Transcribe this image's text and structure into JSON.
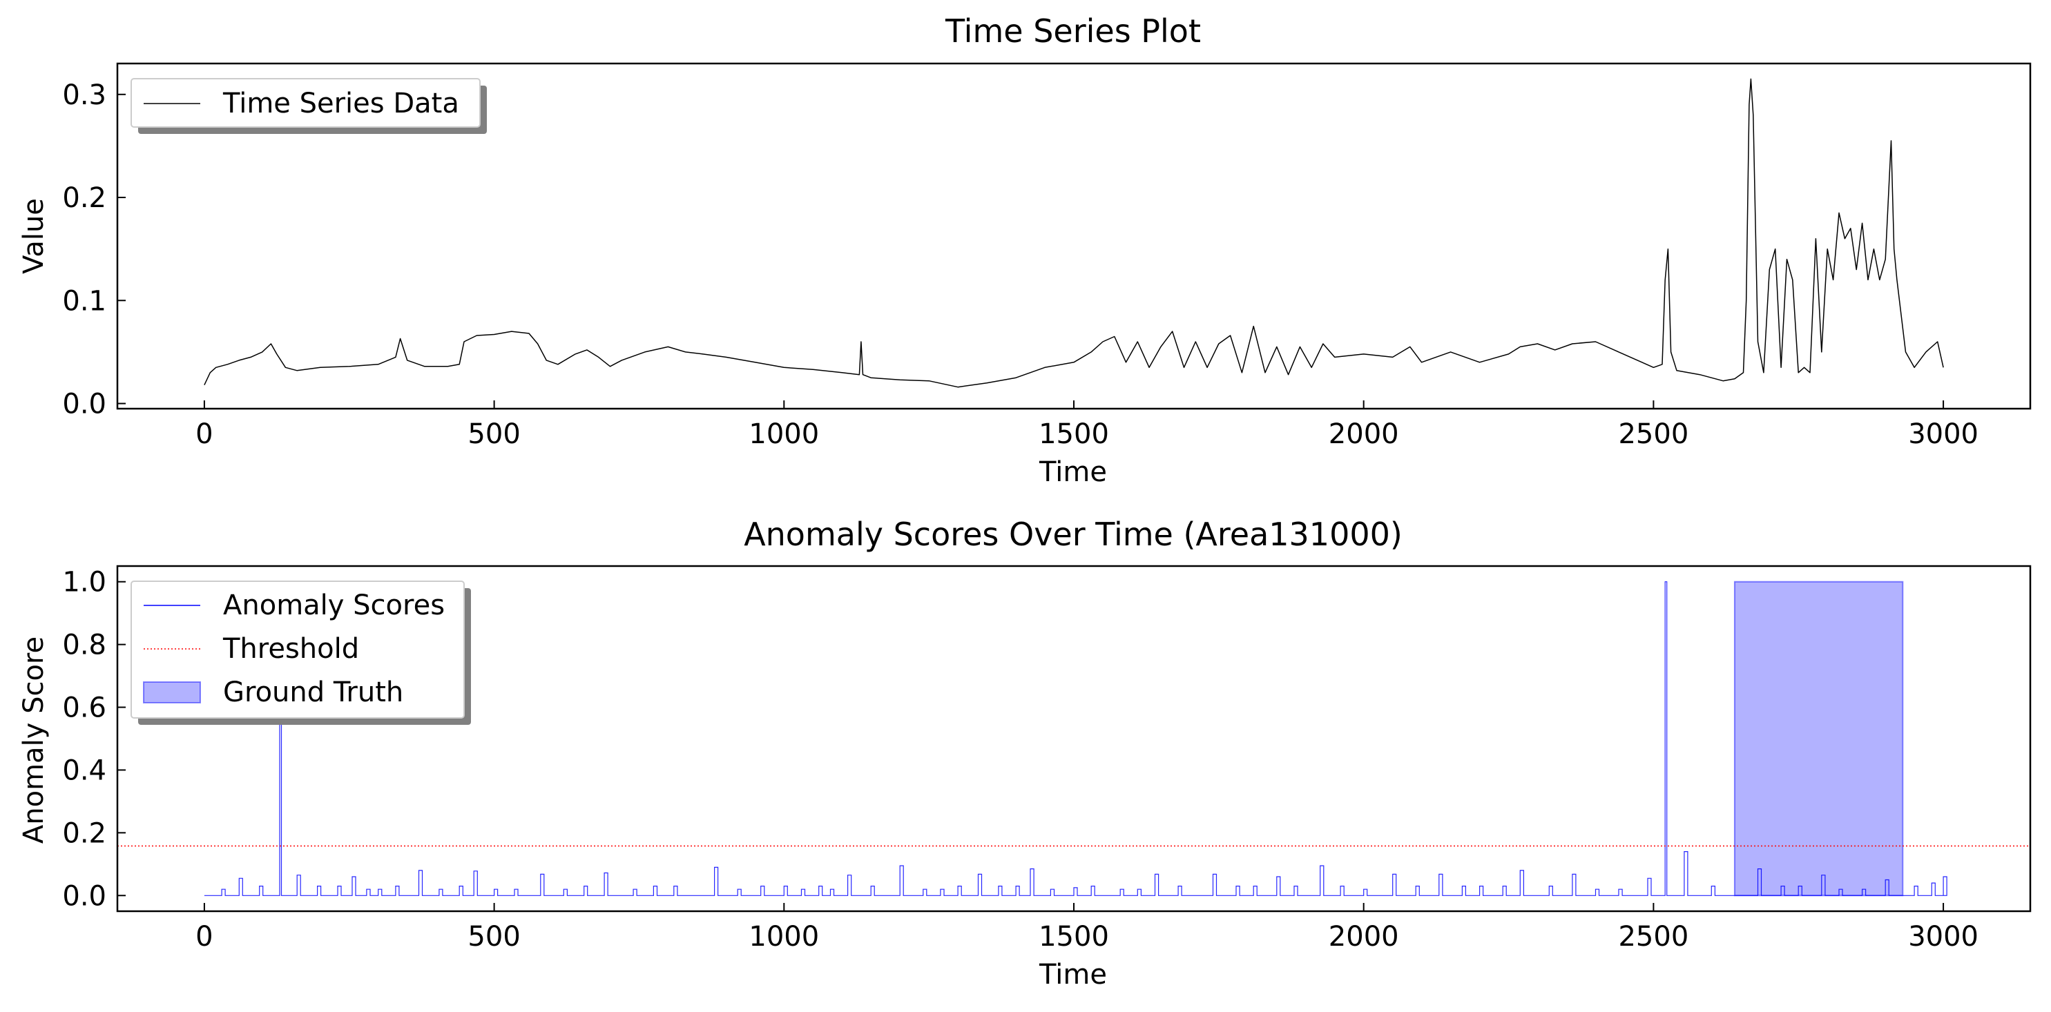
{
  "chart_data": [
    {
      "type": "line",
      "title": "Time Series Plot",
      "xlabel": "Time",
      "ylabel": "Value",
      "xlim": [
        -150,
        3150
      ],
      "ylim": [
        -0.005,
        0.33
      ],
      "xticks": [
        0,
        500,
        1000,
        1500,
        2000,
        2500,
        3000
      ],
      "xtick_labels": [
        "0",
        "500",
        "1000",
        "1500",
        "2000",
        "2500",
        "3000"
      ],
      "yticks": [
        0.0,
        0.1,
        0.2,
        0.3
      ],
      "ytick_labels": [
        "0.0",
        "0.1",
        "0.2",
        "0.3"
      ],
      "grid": false,
      "legend": {
        "placement": "upper-left",
        "entries": [
          {
            "label": "Time Series Data",
            "color": "#000000",
            "style": "solid-line"
          }
        ]
      },
      "series": [
        {
          "name": "Time Series Data",
          "color": "#000000",
          "points": [
            [
              0,
              0.018
            ],
            [
              10,
              0.03
            ],
            [
              20,
              0.035
            ],
            [
              40,
              0.038
            ],
            [
              60,
              0.042
            ],
            [
              80,
              0.045
            ],
            [
              100,
              0.05
            ],
            [
              115,
              0.058
            ],
            [
              125,
              0.048
            ],
            [
              140,
              0.035
            ],
            [
              160,
              0.032
            ],
            [
              200,
              0.035
            ],
            [
              250,
              0.036
            ],
            [
              300,
              0.038
            ],
            [
              330,
              0.045
            ],
            [
              338,
              0.063
            ],
            [
              350,
              0.042
            ],
            [
              380,
              0.036
            ],
            [
              420,
              0.036
            ],
            [
              440,
              0.038
            ],
            [
              448,
              0.06
            ],
            [
              470,
              0.066
            ],
            [
              500,
              0.067
            ],
            [
              530,
              0.07
            ],
            [
              560,
              0.068
            ],
            [
              575,
              0.058
            ],
            [
              590,
              0.042
            ],
            [
              610,
              0.038
            ],
            [
              640,
              0.048
            ],
            [
              660,
              0.052
            ],
            [
              680,
              0.045
            ],
            [
              700,
              0.036
            ],
            [
              720,
              0.042
            ],
            [
              760,
              0.05
            ],
            [
              800,
              0.055
            ],
            [
              830,
              0.05
            ],
            [
              860,
              0.048
            ],
            [
              900,
              0.045
            ],
            [
              950,
              0.04
            ],
            [
              1000,
              0.035
            ],
            [
              1050,
              0.033
            ],
            [
              1100,
              0.03
            ],
            [
              1130,
              0.028
            ],
            [
              1133,
              0.06
            ],
            [
              1136,
              0.028
            ],
            [
              1150,
              0.025
            ],
            [
              1200,
              0.023
            ],
            [
              1250,
              0.022
            ],
            [
              1300,
              0.016
            ],
            [
              1350,
              0.02
            ],
            [
              1400,
              0.025
            ],
            [
              1450,
              0.035
            ],
            [
              1500,
              0.04
            ],
            [
              1530,
              0.05
            ],
            [
              1550,
              0.06
            ],
            [
              1570,
              0.065
            ],
            [
              1590,
              0.04
            ],
            [
              1610,
              0.06
            ],
            [
              1630,
              0.035
            ],
            [
              1650,
              0.055
            ],
            [
              1670,
              0.07
            ],
            [
              1690,
              0.035
            ],
            [
              1710,
              0.06
            ],
            [
              1730,
              0.035
            ],
            [
              1750,
              0.058
            ],
            [
              1770,
              0.066
            ],
            [
              1790,
              0.03
            ],
            [
              1810,
              0.075
            ],
            [
              1830,
              0.03
            ],
            [
              1850,
              0.055
            ],
            [
              1870,
              0.028
            ],
            [
              1890,
              0.055
            ],
            [
              1910,
              0.035
            ],
            [
              1930,
              0.058
            ],
            [
              1950,
              0.045
            ],
            [
              2000,
              0.048
            ],
            [
              2050,
              0.045
            ],
            [
              2080,
              0.055
            ],
            [
              2100,
              0.04
            ],
            [
              2150,
              0.05
            ],
            [
              2200,
              0.04
            ],
            [
              2250,
              0.048
            ],
            [
              2270,
              0.055
            ],
            [
              2300,
              0.058
            ],
            [
              2330,
              0.052
            ],
            [
              2360,
              0.058
            ],
            [
              2400,
              0.06
            ],
            [
              2440,
              0.05
            ],
            [
              2480,
              0.04
            ],
            [
              2500,
              0.035
            ],
            [
              2515,
              0.038
            ],
            [
              2520,
              0.12
            ],
            [
              2525,
              0.15
            ],
            [
              2530,
              0.05
            ],
            [
              2540,
              0.032
            ],
            [
              2580,
              0.028
            ],
            [
              2620,
              0.022
            ],
            [
              2640,
              0.024
            ],
            [
              2655,
              0.03
            ],
            [
              2660,
              0.1
            ],
            [
              2665,
              0.29
            ],
            [
              2668,
              0.315
            ],
            [
              2672,
              0.28
            ],
            [
              2680,
              0.06
            ],
            [
              2690,
              0.03
            ],
            [
              2700,
              0.13
            ],
            [
              2710,
              0.15
            ],
            [
              2720,
              0.035
            ],
            [
              2730,
              0.14
            ],
            [
              2740,
              0.12
            ],
            [
              2750,
              0.03
            ],
            [
              2760,
              0.035
            ],
            [
              2770,
              0.03
            ],
            [
              2780,
              0.16
            ],
            [
              2790,
              0.05
            ],
            [
              2800,
              0.15
            ],
            [
              2810,
              0.12
            ],
            [
              2820,
              0.185
            ],
            [
              2830,
              0.16
            ],
            [
              2840,
              0.17
            ],
            [
              2850,
              0.13
            ],
            [
              2860,
              0.175
            ],
            [
              2870,
              0.12
            ],
            [
              2880,
              0.15
            ],
            [
              2890,
              0.12
            ],
            [
              2900,
              0.14
            ],
            [
              2910,
              0.255
            ],
            [
              2915,
              0.15
            ],
            [
              2920,
              0.12
            ],
            [
              2935,
              0.05
            ],
            [
              2950,
              0.035
            ],
            [
              2970,
              0.05
            ],
            [
              2990,
              0.06
            ],
            [
              3000,
              0.035
            ]
          ]
        }
      ]
    },
    {
      "type": "line",
      "title": "Anomaly Scores Over Time (Area131000)",
      "xlabel": "Time",
      "ylabel": "Anomaly Score",
      "xlim": [
        -150,
        3150
      ],
      "ylim": [
        -0.05,
        1.05
      ],
      "xticks": [
        0,
        500,
        1000,
        1500,
        2000,
        2500,
        3000
      ],
      "xtick_labels": [
        "0",
        "500",
        "1000",
        "1500",
        "2000",
        "2500",
        "3000"
      ],
      "yticks": [
        0.0,
        0.2,
        0.4,
        0.6,
        0.8,
        1.0
      ],
      "ytick_labels": [
        "0.0",
        "0.2",
        "0.4",
        "0.6",
        "0.8",
        "1.0"
      ],
      "grid": false,
      "legend": {
        "placement": "upper-left",
        "entries": [
          {
            "label": "Anomaly Scores",
            "color": "#0000ff",
            "style": "solid-line"
          },
          {
            "label": "Threshold",
            "color": "#ff0000",
            "style": "dotted-line"
          },
          {
            "label": "Ground Truth",
            "color": "#0000ff",
            "style": "filled-box"
          }
        ]
      },
      "threshold": 0.158,
      "ground_truth_spans": [
        [
          2640,
          2930
        ]
      ],
      "score_spikes": [
        [
          30,
          0.02
        ],
        [
          60,
          0.055
        ],
        [
          95,
          0.03
        ],
        [
          130,
          0.56
        ],
        [
          160,
          0.065
        ],
        [
          195,
          0.03
        ],
        [
          230,
          0.03
        ],
        [
          255,
          0.06
        ],
        [
          280,
          0.02
        ],
        [
          300,
          0.02
        ],
        [
          330,
          0.03
        ],
        [
          370,
          0.08
        ],
        [
          405,
          0.02
        ],
        [
          440,
          0.03
        ],
        [
          465,
          0.078
        ],
        [
          500,
          0.02
        ],
        [
          535,
          0.02
        ],
        [
          580,
          0.068
        ],
        [
          620,
          0.02
        ],
        [
          655,
          0.03
        ],
        [
          690,
          0.072
        ],
        [
          740,
          0.02
        ],
        [
          775,
          0.03
        ],
        [
          810,
          0.03
        ],
        [
          880,
          0.09
        ],
        [
          920,
          0.02
        ],
        [
          960,
          0.03
        ],
        [
          1000,
          0.03
        ],
        [
          1030,
          0.02
        ],
        [
          1060,
          0.03
        ],
        [
          1080,
          0.02
        ],
        [
          1110,
          0.065
        ],
        [
          1150,
          0.03
        ],
        [
          1200,
          0.095
        ],
        [
          1240,
          0.02
        ],
        [
          1270,
          0.02
        ],
        [
          1300,
          0.03
        ],
        [
          1335,
          0.068
        ],
        [
          1370,
          0.03
        ],
        [
          1400,
          0.03
        ],
        [
          1425,
          0.085
        ],
        [
          1460,
          0.02
        ],
        [
          1500,
          0.025
        ],
        [
          1530,
          0.03
        ],
        [
          1580,
          0.02
        ],
        [
          1610,
          0.02
        ],
        [
          1640,
          0.068
        ],
        [
          1680,
          0.03
        ],
        [
          1740,
          0.068
        ],
        [
          1780,
          0.03
        ],
        [
          1810,
          0.03
        ],
        [
          1850,
          0.06
        ],
        [
          1880,
          0.03
        ],
        [
          1925,
          0.095
        ],
        [
          1960,
          0.03
        ],
        [
          2000,
          0.02
        ],
        [
          2050,
          0.068
        ],
        [
          2090,
          0.03
        ],
        [
          2130,
          0.068
        ],
        [
          2170,
          0.03
        ],
        [
          2200,
          0.03
        ],
        [
          2240,
          0.03
        ],
        [
          2270,
          0.08
        ],
        [
          2320,
          0.03
        ],
        [
          2360,
          0.068
        ],
        [
          2400,
          0.02
        ],
        [
          2440,
          0.02
        ],
        [
          2490,
          0.055
        ],
        [
          2520,
          1.0
        ],
        [
          2553,
          0.14
        ],
        [
          2600,
          0.03
        ],
        [
          2680,
          0.085
        ],
        [
          2720,
          0.03
        ],
        [
          2750,
          0.03
        ],
        [
          2790,
          0.065
        ],
        [
          2820,
          0.02
        ],
        [
          2860,
          0.02
        ],
        [
          2900,
          0.05
        ],
        [
          2950,
          0.03
        ],
        [
          2980,
          0.04
        ],
        [
          3000,
          0.06
        ]
      ]
    }
  ]
}
